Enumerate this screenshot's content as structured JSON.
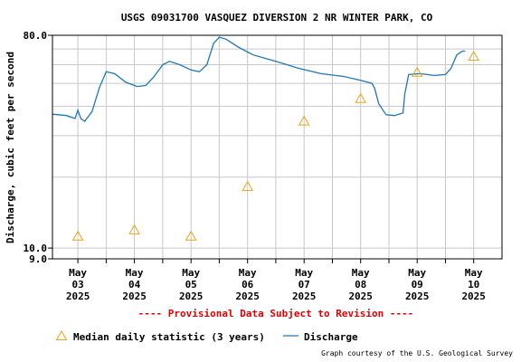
{
  "chart_data": {
    "type": "line",
    "title": "USGS 09031700 VASQUEZ DIVERSION 2 NR WINTER PARK, CO",
    "ylabel": "Discharge, cubic feet per second",
    "y_scale": "log",
    "ylim": [
      9.0,
      80.0
    ],
    "y_ticks": [
      {
        "value": 80.0,
        "label": "80.0"
      },
      {
        "value": 10.0,
        "label": "10.0"
      },
      {
        "value": 9.0,
        "label": "9.0"
      }
    ],
    "x_labels": [
      {
        "day": 0,
        "month": "May",
        "date": "03",
        "year": "2025"
      },
      {
        "day": 1,
        "month": "May",
        "date": "04",
        "year": "2025"
      },
      {
        "day": 2,
        "month": "May",
        "date": "05",
        "year": "2025"
      },
      {
        "day": 3,
        "month": "May",
        "date": "06",
        "year": "2025"
      },
      {
        "day": 4,
        "month": "May",
        "date": "07",
        "year": "2025"
      },
      {
        "day": 5,
        "month": "May",
        "date": "08",
        "year": "2025"
      },
      {
        "day": 6,
        "month": "May",
        "date": "09",
        "year": "2025"
      },
      {
        "day": 7,
        "month": "May",
        "date": "10",
        "year": "2025"
      }
    ],
    "xlim_days": [
      -0.45,
      7.5
    ],
    "grid": true,
    "provisional_note": "---- Provisional Data Subject to Revision ----",
    "legend": [
      {
        "key": "median",
        "label": "Median daily statistic (3 years)"
      },
      {
        "key": "discharge",
        "label": "Discharge"
      }
    ],
    "credit": "Graph courtesy of the U.S. Geological Survey",
    "series": [
      {
        "key": "discharge",
        "color": "#1f77b4",
        "points": [
          [
            -0.45,
            37.0
          ],
          [
            -0.2,
            36.5
          ],
          [
            -0.05,
            35.5
          ],
          [
            0.0,
            38.5
          ],
          [
            0.05,
            35.5
          ],
          [
            0.12,
            34.5
          ],
          [
            0.25,
            38.0
          ],
          [
            0.38,
            48.0
          ],
          [
            0.5,
            56.0
          ],
          [
            0.65,
            55.0
          ],
          [
            0.85,
            50.5
          ],
          [
            1.05,
            48.5
          ],
          [
            1.2,
            49.0
          ],
          [
            1.35,
            53.5
          ],
          [
            1.5,
            60.0
          ],
          [
            1.62,
            62.0
          ],
          [
            1.8,
            60.0
          ],
          [
            2.0,
            57.0
          ],
          [
            2.15,
            56.0
          ],
          [
            2.28,
            60.0
          ],
          [
            2.4,
            74.0
          ],
          [
            2.5,
            78.5
          ],
          [
            2.62,
            77.0
          ],
          [
            2.85,
            71.0
          ],
          [
            3.1,
            66.0
          ],
          [
            3.5,
            62.0
          ],
          [
            3.9,
            58.0
          ],
          [
            4.3,
            55.0
          ],
          [
            4.7,
            53.5
          ],
          [
            5.0,
            51.5
          ],
          [
            5.2,
            50.0
          ],
          [
            5.25,
            47.5
          ],
          [
            5.32,
            41.0
          ],
          [
            5.45,
            36.8
          ],
          [
            5.6,
            36.5
          ],
          [
            5.75,
            37.5
          ],
          [
            5.78,
            45.0
          ],
          [
            5.85,
            54.5
          ],
          [
            6.05,
            55.0
          ],
          [
            6.3,
            54.0
          ],
          [
            6.5,
            54.5
          ],
          [
            6.6,
            58.0
          ],
          [
            6.7,
            66.0
          ],
          [
            6.8,
            68.5
          ],
          [
            6.85,
            68.5
          ]
        ]
      },
      {
        "key": "median",
        "color": "#e8a317",
        "points": [
          [
            0.0,
            11.2
          ],
          [
            1.0,
            11.9
          ],
          [
            2.0,
            11.2
          ],
          [
            3.0,
            18.2
          ],
          [
            4.0,
            34.5
          ],
          [
            5.0,
            43.0
          ],
          [
            6.0,
            55.5
          ],
          [
            7.0,
            65.0
          ]
        ]
      }
    ]
  }
}
